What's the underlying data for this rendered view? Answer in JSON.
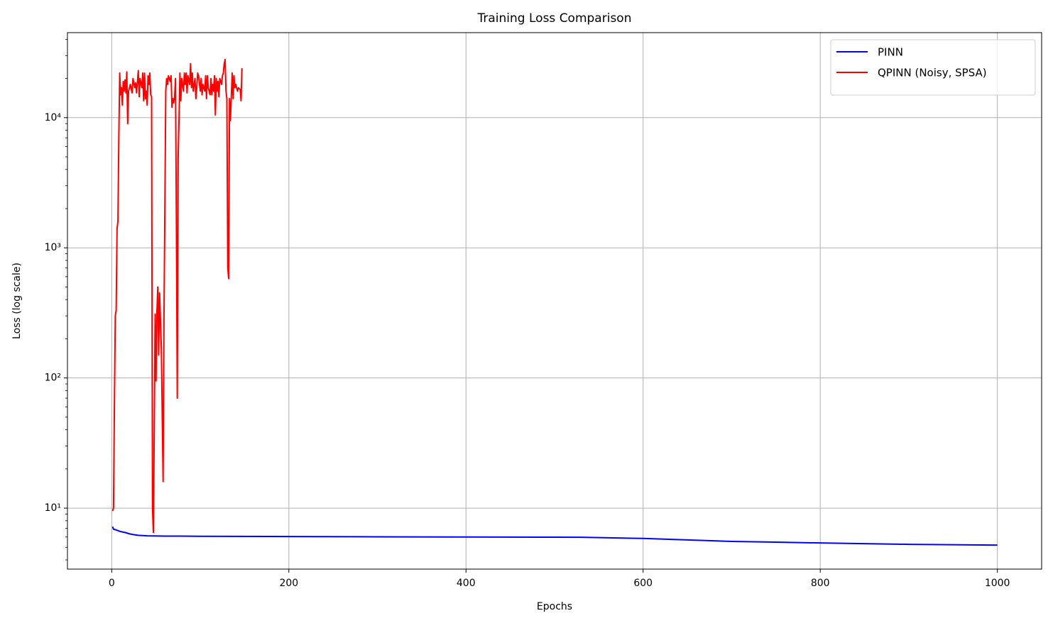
{
  "chart_data": {
    "type": "line",
    "title": "Training Loss Comparison",
    "xlabel": "Epochs",
    "ylabel": "Loss (log scale)",
    "yscale": "log",
    "grid": true,
    "legend": "upper right",
    "xlim": [
      -50,
      1050
    ],
    "xticks": [
      0,
      200,
      400,
      600,
      800,
      1000
    ],
    "ylim": [
      3.4,
      45000
    ],
    "yticks": [
      {
        "value": 10,
        "label": "10¹"
      },
      {
        "value": 100,
        "label": "10²"
      },
      {
        "value": 1000,
        "label": "10³"
      },
      {
        "value": 10000,
        "label": "10⁴"
      }
    ],
    "series": [
      {
        "name": "PINN",
        "color": "#0000ff",
        "x": [
          1,
          2,
          5,
          10,
          15,
          20,
          25,
          30,
          40,
          60,
          100,
          200,
          300,
          400,
          500,
          530,
          600,
          650,
          700,
          750,
          800,
          900,
          1000
        ],
        "values": [
          7.2,
          6.9,
          6.8,
          6.6,
          6.5,
          6.35,
          6.25,
          6.18,
          6.12,
          6.1,
          6.08,
          6.05,
          6.02,
          6.0,
          5.98,
          5.97,
          5.85,
          5.7,
          5.55,
          5.48,
          5.4,
          5.27,
          5.2
        ]
      },
      {
        "name": "QPINN (Noisy, SPSA)",
        "color": "#ff0000",
        "x": [
          1,
          2,
          3,
          4,
          5,
          6,
          7,
          8,
          9,
          10,
          11,
          12,
          13,
          14,
          15,
          16,
          17,
          18,
          19,
          21,
          23,
          24,
          26,
          27,
          28,
          30,
          31,
          32,
          34,
          35,
          36,
          37,
          38,
          39,
          40,
          41,
          42,
          43,
          44,
          45,
          46,
          47,
          48,
          49,
          50,
          51,
          52,
          53,
          54,
          56,
          58,
          59,
          60,
          61,
          62,
          63,
          64,
          66,
          67,
          68,
          69,
          70,
          71,
          72,
          73,
          74,
          75,
          76,
          77,
          78,
          79,
          81,
          82,
          83,
          84,
          85,
          86,
          88,
          89,
          90,
          91,
          92,
          94,
          95,
          96,
          97,
          98,
          100,
          101,
          102,
          103,
          105,
          106,
          107,
          108,
          109,
          110,
          111,
          112,
          113,
          114,
          115,
          116,
          117,
          118,
          119,
          120,
          121,
          122,
          124,
          125,
          126,
          127,
          128,
          129,
          130,
          131,
          132,
          133,
          134,
          136,
          137,
          138,
          139,
          140,
          142,
          143,
          145,
          146,
          147
        ],
        "values": [
          9.5,
          10,
          60,
          300,
          330,
          1400,
          1600,
          7000,
          22000,
          15000,
          17000,
          12500,
          19000,
          16000,
          19500,
          15500,
          22500,
          9000,
          16000,
          18000,
          15500,
          20000,
          17000,
          18500,
          15500,
          23000,
          14500,
          20000,
          17000,
          22000,
          13500,
          22000,
          14000,
          16000,
          12500,
          21000,
          18000,
          22000,
          15000,
          14500,
          10,
          6.5,
          40,
          310,
          95,
          320,
          500,
          150,
          450,
          170,
          16,
          300,
          2000,
          16000,
          20000,
          18000,
          21000,
          19000,
          21000,
          12000,
          14000,
          13000,
          14500,
          20000,
          1500,
          70,
          5000,
          10000,
          22000,
          13500,
          20000,
          16000,
          22000,
          18000,
          22000,
          15500,
          21000,
          18000,
          26000,
          17000,
          22000,
          16000,
          20000,
          14000,
          17000,
          22000,
          21000,
          16000,
          20000,
          15000,
          18000,
          16000,
          21000,
          14000,
          21000,
          17000,
          16000,
          15000,
          20000,
          15000,
          18000,
          16000,
          21000,
          10500,
          20000,
          16000,
          19000,
          14500,
          20000,
          18000,
          21000,
          22000,
          26000,
          28000,
          16000,
          14000,
          700,
          580,
          14000,
          9500,
          22000,
          14000,
          21000,
          17000,
          18000,
          16000,
          17000,
          16500,
          13500,
          24000
        ]
      }
    ]
  }
}
